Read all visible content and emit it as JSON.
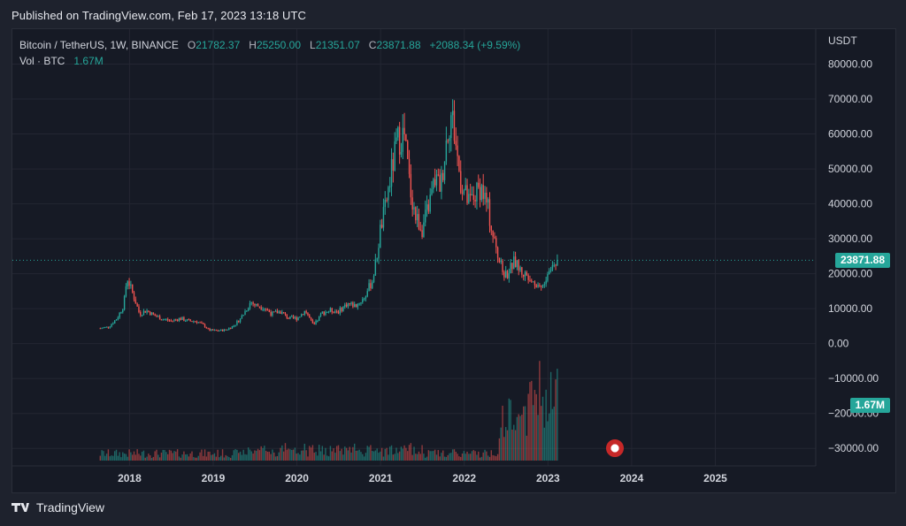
{
  "published": "Published on TradingView.com, Feb 17, 2023 13:18 UTC",
  "legend": {
    "symbol": "Bitcoin / TetherUS, 1W, BINANCE",
    "o_label": "O",
    "o_value": "21782.37",
    "h_label": "H",
    "h_value": "25250.00",
    "l_label": "L",
    "l_value": "21351.07",
    "c_label": "C",
    "c_value": "23871.88",
    "change": "+2088.34 (+9.59%)",
    "vol_label": "Vol · BTC",
    "vol_value": "1.67M"
  },
  "price_axis_unit": "USDT",
  "last_price_tag": "23871.88",
  "volume_tag": "1.67M",
  "footer_brand": "TradingView",
  "colors": {
    "up": "#26a69a",
    "down": "#ef5350",
    "background": "#161a25",
    "grid": "#232632",
    "text": "#d1d4dc"
  },
  "chart_data": {
    "type": "candlestick",
    "title": "Bitcoin / TetherUS, 1W, BINANCE",
    "ylabel": "USDT",
    "ylim": [
      -35000,
      90000
    ],
    "y_ticks": [
      "80000.00",
      "70000.00",
      "60000.00",
      "50000.00",
      "40000.00",
      "30000.00",
      "20000.00",
      "10000.00",
      "0.00",
      "−10000.00",
      "−20000.00",
      "−30000.00"
    ],
    "y_tick_values": [
      80000,
      70000,
      60000,
      50000,
      40000,
      30000,
      20000,
      10000,
      0,
      -10000,
      -20000,
      -30000
    ],
    "x_ticks": [
      "2018",
      "2019",
      "2020",
      "2021",
      "2022",
      "2023",
      "2024",
      "2025"
    ],
    "x_tick_years": [
      2018,
      2019,
      2020,
      2021,
      2022,
      2023,
      2024,
      2025
    ],
    "xlim_year": [
      2016.6,
      2026.2
    ],
    "last_price": 23871.88,
    "grid": true,
    "series": [
      {
        "name": "price",
        "points": [
          [
            2017.65,
            4400
          ],
          [
            2017.75,
            4800
          ],
          [
            2017.85,
            7200
          ],
          [
            2017.93,
            11000
          ],
          [
            2017.97,
            19000
          ],
          [
            2018.05,
            13500
          ],
          [
            2018.12,
            8500
          ],
          [
            2018.2,
            9500
          ],
          [
            2018.3,
            8000
          ],
          [
            2018.4,
            7000
          ],
          [
            2018.5,
            6500
          ],
          [
            2018.6,
            7200
          ],
          [
            2018.7,
            6500
          ],
          [
            2018.8,
            6400
          ],
          [
            2018.9,
            5000
          ],
          [
            2018.95,
            3800
          ],
          [
            2019.05,
            3700
          ],
          [
            2019.15,
            3900
          ],
          [
            2019.25,
            5200
          ],
          [
            2019.35,
            8000
          ],
          [
            2019.45,
            12000
          ],
          [
            2019.5,
            11000
          ],
          [
            2019.6,
            10500
          ],
          [
            2019.7,
            8500
          ],
          [
            2019.8,
            9200
          ],
          [
            2019.9,
            7300
          ],
          [
            2020.0,
            7200
          ],
          [
            2020.1,
            9500
          ],
          [
            2020.2,
            5000
          ],
          [
            2020.3,
            8800
          ],
          [
            2020.4,
            9500
          ],
          [
            2020.5,
            9200
          ],
          [
            2020.6,
            11500
          ],
          [
            2020.7,
            10800
          ],
          [
            2020.8,
            13000
          ],
          [
            2020.9,
            18000
          ],
          [
            2020.95,
            24000
          ],
          [
            2021.0,
            33000
          ],
          [
            2021.05,
            38000
          ],
          [
            2021.12,
            48000
          ],
          [
            2021.2,
            58000
          ],
          [
            2021.28,
            60000
          ],
          [
            2021.35,
            45000
          ],
          [
            2021.42,
            36000
          ],
          [
            2021.5,
            33000
          ],
          [
            2021.58,
            40000
          ],
          [
            2021.65,
            47000
          ],
          [
            2021.72,
            45000
          ],
          [
            2021.8,
            61000
          ],
          [
            2021.85,
            66000
          ],
          [
            2021.9,
            57000
          ],
          [
            2021.95,
            47000
          ],
          [
            2022.05,
            40000
          ],
          [
            2022.12,
            42000
          ],
          [
            2022.2,
            45000
          ],
          [
            2022.28,
            39000
          ],
          [
            2022.35,
            30000
          ],
          [
            2022.45,
            21000
          ],
          [
            2022.5,
            19500
          ],
          [
            2022.6,
            23500
          ],
          [
            2022.7,
            20000
          ],
          [
            2022.8,
            19500
          ],
          [
            2022.85,
            17000
          ],
          [
            2022.9,
            16700
          ],
          [
            2022.95,
            16500
          ],
          [
            2023.02,
            21000
          ],
          [
            2023.08,
            23000
          ],
          [
            2023.13,
            23871.88
          ]
        ]
      }
    ]
  }
}
